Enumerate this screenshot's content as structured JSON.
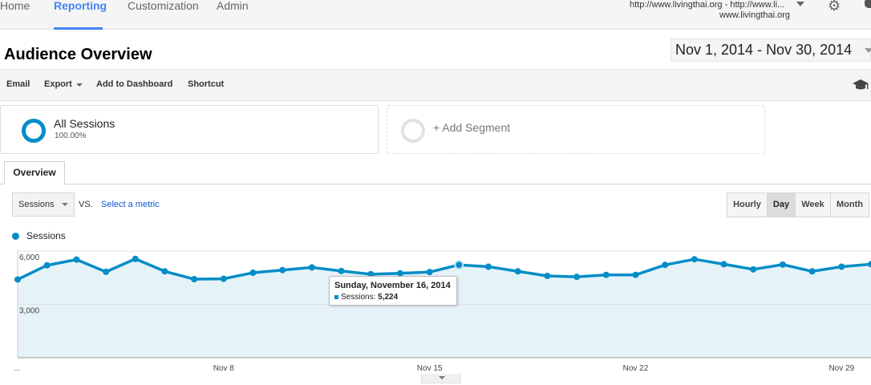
{
  "topnav": {
    "items": [
      "Home",
      "Reporting",
      "Customization",
      "Admin"
    ],
    "account_url": "http://www.livingthai.org - http://www.li...",
    "account_property": "www.livingthai.org"
  },
  "page": {
    "title": "Audience Overview",
    "date_range": "Nov 1, 2014 - Nov 30, 2014"
  },
  "toolbar": {
    "email": "Email",
    "export": "Export",
    "add_to_dashboard": "Add to Dashboard",
    "shortcut": "Shortcut"
  },
  "segments": {
    "all_sessions": "All Sessions",
    "all_sessions_pct": "100.00%",
    "add_segment": "+ Add Segment"
  },
  "tabs": {
    "overview": "Overview"
  },
  "controls": {
    "metric": "Sessions",
    "vs": "VS.",
    "select_metric": "Select a metric",
    "granularity": [
      "Hourly",
      "Day",
      "Week",
      "Month"
    ],
    "selected_granularity": "Day"
  },
  "legend": {
    "series": "Sessions"
  },
  "tooltip": {
    "date": "Sunday, November 16, 2014",
    "label": "Sessions:",
    "value": "5,224"
  },
  "colors": {
    "series": "#058dc7",
    "area": "#e5f3f9",
    "accent": "#4285f4"
  },
  "chart_data": {
    "type": "line",
    "title": "",
    "xlabel": "",
    "ylabel": "",
    "x_tick_labels": [
      "...",
      "Nov 8",
      "Nov 15",
      "Nov 22",
      "Nov 29"
    ],
    "x_tick_days": [
      1,
      8,
      15,
      22,
      29
    ],
    "y_tick_labels": [
      "6,000",
      "3,000"
    ],
    "y_ticks": [
      6000,
      3000
    ],
    "ylim": [
      0,
      6000
    ],
    "grid": true,
    "series": [
      {
        "name": "Sessions",
        "x": [
          1,
          2,
          3,
          4,
          5,
          6,
          7,
          8,
          9,
          10,
          11,
          12,
          13,
          14,
          15,
          16,
          17,
          18,
          19,
          20,
          21,
          22,
          23,
          24,
          25,
          26,
          27,
          28,
          29,
          30
        ],
        "values": [
          4400,
          5200,
          5520,
          4830,
          5560,
          4860,
          4420,
          4440,
          4780,
          4930,
          5080,
          4880,
          4700,
          4750,
          4820,
          5224,
          5120,
          4860,
          4600,
          4550,
          4660,
          4660,
          5220,
          5540,
          5260,
          4970,
          5240,
          4860,
          5120,
          5260
        ]
      }
    ]
  }
}
